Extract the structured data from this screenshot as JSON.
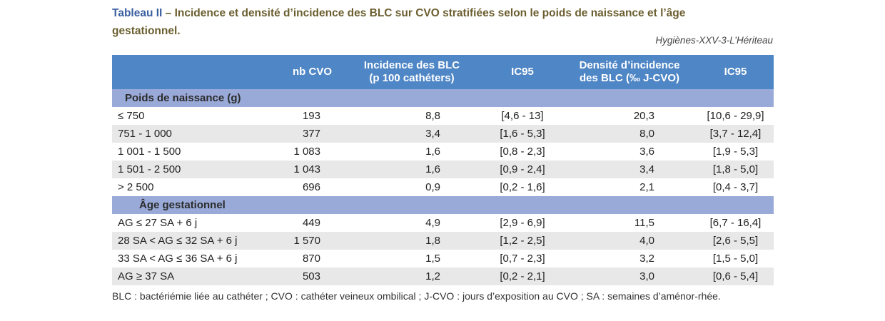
{
  "title": {
    "lead": "Tableau II",
    "text": " – Incidence et densité d’incidence des BLC sur CVO stratifiées selon le poids de naissance et l’âge gestationnel."
  },
  "source": "Hygiènes-XXV-3-L’Hériteau",
  "table": {
    "headers": {
      "col0": "",
      "col1": "nb CVO",
      "col2": [
        "Incidence des BLC",
        "(p 100 cathéters)"
      ],
      "col3": "IC95",
      "col4": [
        "Densité d’incidence",
        "des BLC (‰ J-CVO)"
      ],
      "col5": "IC95"
    },
    "sections": [
      {
        "label": "Poids de naissance (g)",
        "rows": [
          [
            "≤ 750",
            "193",
            "8,8",
            "[4,6 - 13]",
            "20,3",
            "[10,6 - 29,9]"
          ],
          [
            "751 - 1 000",
            "377",
            "3,4",
            "[1,6 - 5,3]",
            "8,0",
            "[3,7 - 12,4]"
          ],
          [
            "1 001 - 1 500",
            "1 083",
            "1,6",
            "[0,8 - 2,3]",
            "3,6",
            "[1,9 - 5,3]"
          ],
          [
            "1 501 - 2 500",
            "1 043",
            "1,6",
            "[0,9 - 2,4]",
            "3,4",
            "[1,8 - 5,0]"
          ],
          [
            "> 2 500",
            "696",
            "0,9",
            "[0,2 - 1,6]",
            "2,1",
            "[0,4 - 3,7]"
          ]
        ]
      },
      {
        "label": "Âge gestationnel",
        "rows": [
          [
            "AG ≤ 27 SA + 6 j",
            "449",
            "4,9",
            "[2,9 - 6,9]",
            "11,5",
            "[6,7 - 16,4]"
          ],
          [
            "28 SA < AG ≤ 32 SA + 6 j",
            "1 570",
            "1,8",
            "[1,2 - 2,5]",
            "4,0",
            "[2,6 - 5,5]"
          ],
          [
            "33 SA < AG ≤ 36 SA + 6 j",
            "870",
            "1,5",
            "[0,7 - 2,3]",
            "3,2",
            "[1,5 - 5,0]"
          ],
          [
            "AG ≥ 37 SA",
            "503",
            "1,2",
            "[0,2 - 2,1]",
            "3,0",
            "[0,6 - 5,4]"
          ]
        ]
      }
    ]
  },
  "footnote": "BLC : bactériémie liée au cathéter ; CVO : cathéter veineux ombilical ; J-CVO : jours d’exposition au CVO ; SA : semaines d’aménor-rhée.",
  "colors": {
    "title_lead": "#3a5fa0",
    "title_text": "#6b5e2f",
    "header_bg": "#4f86c6",
    "section_bg": "#99aad9",
    "alt_row_bg": "#e8e8e8"
  }
}
